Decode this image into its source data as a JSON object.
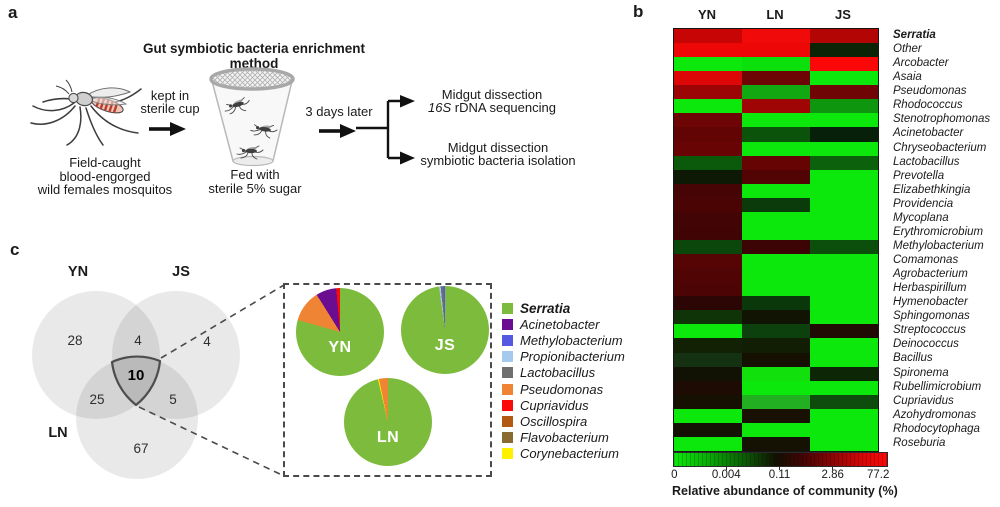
{
  "panel_a": {
    "label": "a",
    "title": "Gut symbiotic bacteria enrichment method",
    "arrow1_label_line1": "kept in",
    "arrow1_label_line2": "sterile cup",
    "mosquito_caption_line1": "Field-caught",
    "mosquito_caption_line2": "blood-engorged",
    "mosquito_caption_line3": "wild females mosquitos",
    "cup_caption_line1": "Fed with",
    "cup_caption_line2": "sterile 5% sugar",
    "arrow2_label": "3 days later",
    "outcome1_line1": "Midgut dissection",
    "outcome1_line2_italic": "16S",
    "outcome1_line2_rest": "rDNA sequencing",
    "outcome2_line1": "Midgut dissection",
    "outcome2_line2": "symbiotic bacteria isolation"
  },
  "panel_b": {
    "label": "b"
  },
  "panel_c": {
    "label": "c"
  },
  "chart_data": [
    {
      "type": "heatmap",
      "columns": [
        "YN",
        "LN",
        "JS"
      ],
      "rows": [
        "Serratia",
        "Other",
        "Arcobacter",
        "Asaia",
        "Pseudomonas",
        "Rhodococcus",
        "Stenotrophomonas",
        "Acinetobacter",
        "Chryseobacterium",
        "Lactobacillus",
        "Prevotella",
        "Elizabethkingia",
        "Providencia",
        "Mycoplana",
        "Erythromicrobium",
        "Methylobacterium",
        "Comamonas",
        "Agrobacterium",
        "Herbaspirillum",
        "Hymenobacter",
        "Sphingomonas",
        "Streptococcus",
        "Deinococcus",
        "Bacillus",
        "Spironema",
        "Rubellimicrobium",
        "Cupriavidus",
        "Azohydromonas",
        "Rhodocytophaga",
        "Roseburia"
      ],
      "cell_colors": [
        [
          "#c80505",
          "#f00a0a",
          "#b40505"
        ],
        [
          "#ee0707",
          "#ee0707",
          "#0b2405"
        ],
        [
          "#0ce80c",
          "#0ce00c",
          "#fb0707"
        ],
        [
          "#dd0707",
          "#6e0505",
          "#0ce80c"
        ],
        [
          "#9b0505",
          "#12a812",
          "#700505"
        ],
        [
          "#0ce80c",
          "#a00505",
          "#0e960e"
        ],
        [
          "#6e0505",
          "#0ce80c",
          "#0ce80c"
        ],
        [
          "#620404",
          "#0b520b",
          "#07200a"
        ],
        [
          "#680404",
          "#0ce80c",
          "#0ce80c"
        ],
        [
          "#0b5a0b",
          "#660404",
          "#0c620c"
        ],
        [
          "#0d1805",
          "#520404",
          "#0ce80c"
        ],
        [
          "#460404",
          "#0ce80c",
          "#0ce80c"
        ],
        [
          "#4a0404",
          "#0b3a0b",
          "#0ce80c"
        ],
        [
          "#420404",
          "#0ce80c",
          "#0ce80c"
        ],
        [
          "#400404",
          "#0ce80c",
          "#0ce80c"
        ],
        [
          "#0b460b",
          "#3c0404",
          "#0c4e0c"
        ],
        [
          "#560404",
          "#0ce80c",
          "#0ce80c"
        ],
        [
          "#500404",
          "#0ce80c",
          "#0ce80c"
        ],
        [
          "#4c0404",
          "#0ce80c",
          "#0ce80c"
        ],
        [
          "#2c0604",
          "#0b380b",
          "#0ce80c"
        ],
        [
          "#0e3408",
          "#121403",
          "#0ce80c"
        ],
        [
          "#0ce80c",
          "#0c400c",
          "#220a04"
        ],
        [
          "#122004",
          "#121e04",
          "#0ce80c"
        ],
        [
          "#143212",
          "#161003",
          "#0ce80c"
        ],
        [
          "#121204",
          "#12e00c",
          "#0c2606"
        ],
        [
          "#1e0c04",
          "#0ce80c",
          "#0ce80c"
        ],
        [
          "#161003",
          "#22b022",
          "#0d4c0d"
        ],
        [
          "#0ce80c",
          "#181003",
          "#0ce80c"
        ],
        [
          "#141003",
          "#0ce80c",
          "#0ce80c"
        ],
        [
          "#0ce80c",
          "#161203",
          "#0ce80c"
        ]
      ],
      "est_values_pct": [
        [
          20,
          50,
          15
        ],
        [
          40,
          40,
          0.09
        ],
        [
          0.001,
          0.001,
          45
        ],
        [
          30,
          1.5,
          0.001
        ],
        [
          5,
          0.01,
          1.5
        ],
        [
          0.001,
          4,
          0.02
        ],
        [
          1.5,
          0.001,
          0.001
        ],
        [
          1.2,
          0.06,
          0.1
        ],
        [
          1.3,
          0.001,
          0.001
        ],
        [
          0.05,
          1.3,
          0.04
        ],
        [
          0.1,
          0.8,
          0.001
        ],
        [
          0.6,
          0.001,
          0.001
        ],
        [
          0.7,
          0.07,
          0.001
        ],
        [
          0.55,
          0.001,
          0.001
        ],
        [
          0.5,
          0.001,
          0.001
        ],
        [
          0.06,
          0.45,
          0.05
        ],
        [
          0.8,
          0.001,
          0.001
        ],
        [
          0.7,
          0.001,
          0.001
        ],
        [
          0.65,
          0.001,
          0.001
        ],
        [
          0.25,
          0.07,
          0.001
        ],
        [
          0.08,
          0.11,
          0.001
        ],
        [
          0.001,
          0.06,
          0.18
        ],
        [
          0.1,
          0.1,
          0.001
        ],
        [
          0.08,
          0.12,
          0.001
        ],
        [
          0.11,
          0.005,
          0.09
        ],
        [
          0.16,
          0.001,
          0.001
        ],
        [
          0.12,
          0.008,
          0.06
        ],
        [
          0.001,
          0.13,
          0.001
        ],
        [
          0.12,
          0.001,
          0.001
        ],
        [
          0.001,
          0.12,
          0.001
        ]
      ],
      "colorscale": {
        "label": "Relative abundance of community (%)",
        "ticks": [
          "0",
          "0.004",
          "0.11",
          "2.86",
          "77.2"
        ],
        "gradient": [
          "#0ce80c 0%",
          "#0bb408 14%",
          "#0b6a06 30%",
          "#121002 48%",
          "#400504 60%",
          "#880505 74%",
          "#d50707 88%",
          "#fb0808 100%"
        ]
      }
    },
    {
      "type": "venn",
      "sets": [
        "YN",
        "JS",
        "LN"
      ],
      "values": {
        "yn_only": "28",
        "yn_js": "4",
        "js_only": "4",
        "yn_js_ln": "10",
        "yn_ln": "25",
        "js_ln": "5",
        "ln_only": "67"
      }
    },
    {
      "type": "pie",
      "pies": [
        {
          "name": "YN",
          "slices": [
            {
              "genus": "Serratia",
              "pct": 79.4
            },
            {
              "genus": "Pseudomonas",
              "pct": 11.7
            },
            {
              "genus": "Acinetobacter",
              "pct": 7.5
            },
            {
              "genus": "Cupriavidus",
              "pct": 1.4
            }
          ]
        },
        {
          "name": "JS",
          "slices": [
            {
              "genus": "Serratia",
              "pct": 97.8
            },
            {
              "genus": "Propionibacterium",
              "pct": 0.6
            },
            {
              "genus": "Lactobacillus",
              "pct": 0.9
            },
            {
              "genus": "Methylobacterium",
              "pct": 0.7
            }
          ]
        },
        {
          "name": "LN",
          "slices": [
            {
              "genus": "Serratia",
              "pct": 96.3
            },
            {
              "genus": "Corynebacterium",
              "pct": 0.4
            },
            {
              "genus": "Pseudomonas",
              "pct": 3.3
            }
          ]
        }
      ],
      "legend": [
        {
          "genus": "Serratia",
          "color": "#7cbb3c",
          "bold": true
        },
        {
          "genus": "Acinetobacter",
          "color": "#6a0d91"
        },
        {
          "genus": "Methylobacterium",
          "color": "#5558e0"
        },
        {
          "genus": "Propionibacterium",
          "color": "#a6c9ee"
        },
        {
          "genus": "Lactobacillus",
          "color": "#6f6f6f"
        },
        {
          "genus": "Pseudomonas",
          "color": "#ef8435"
        },
        {
          "genus": "Cupriavidus",
          "color": "#fb0a0a"
        },
        {
          "genus": "Oscillospira",
          "color": "#b35a12"
        },
        {
          "genus": "Flavobacterium",
          "color": "#8a6b2f"
        },
        {
          "genus": "Corynebacterium",
          "color": "#fdf100"
        }
      ]
    }
  ]
}
